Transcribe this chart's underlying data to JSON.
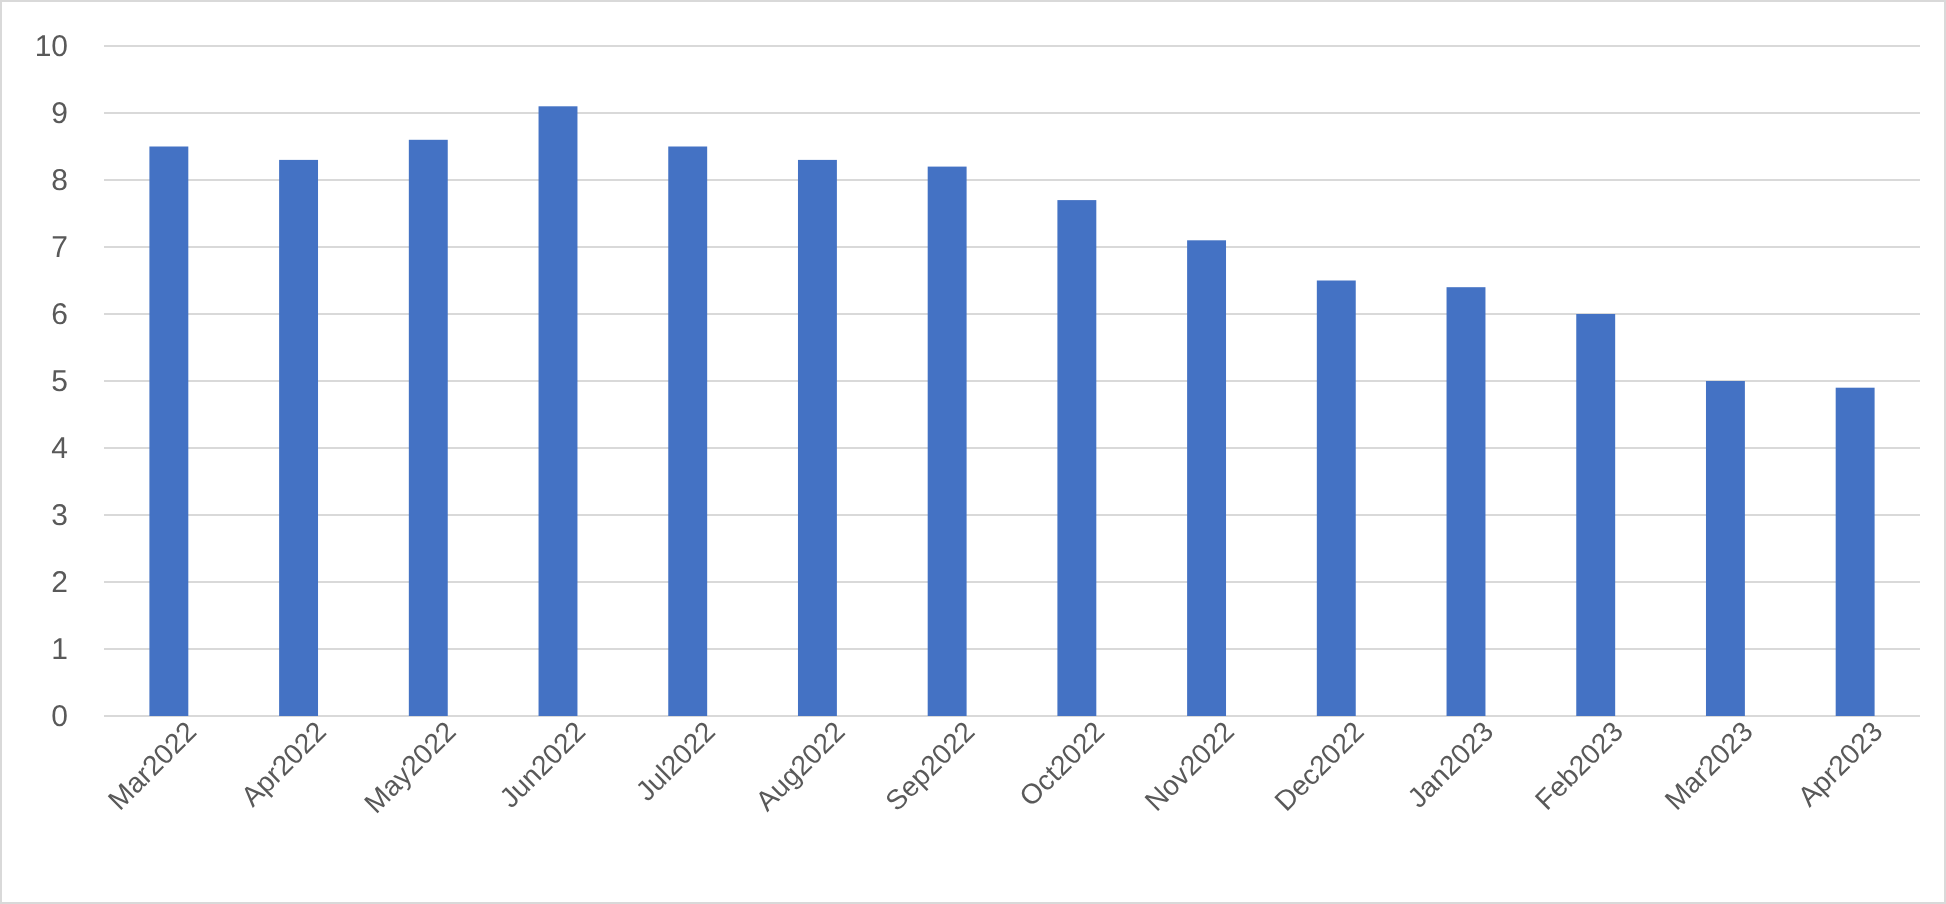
{
  "chart_data": {
    "type": "bar",
    "categories": [
      "Mar2022",
      "Apr2022",
      "May2022",
      "Jun2022",
      "Jul2022",
      "Aug2022",
      "Sep2022",
      "Oct2022",
      "Nov2022",
      "Dec2022",
      "Jan2023",
      "Feb2023",
      "Mar2023",
      "Apr2023"
    ],
    "values": [
      8.5,
      8.3,
      8.6,
      9.1,
      8.5,
      8.3,
      8.2,
      7.7,
      7.1,
      6.5,
      6.4,
      6.0,
      5.0,
      4.9
    ],
    "color": "#4472c4",
    "ylim": [
      0,
      10
    ],
    "yticks": [
      0,
      1,
      2,
      3,
      4,
      5,
      6,
      7,
      8,
      9,
      10
    ],
    "grid": "y"
  }
}
